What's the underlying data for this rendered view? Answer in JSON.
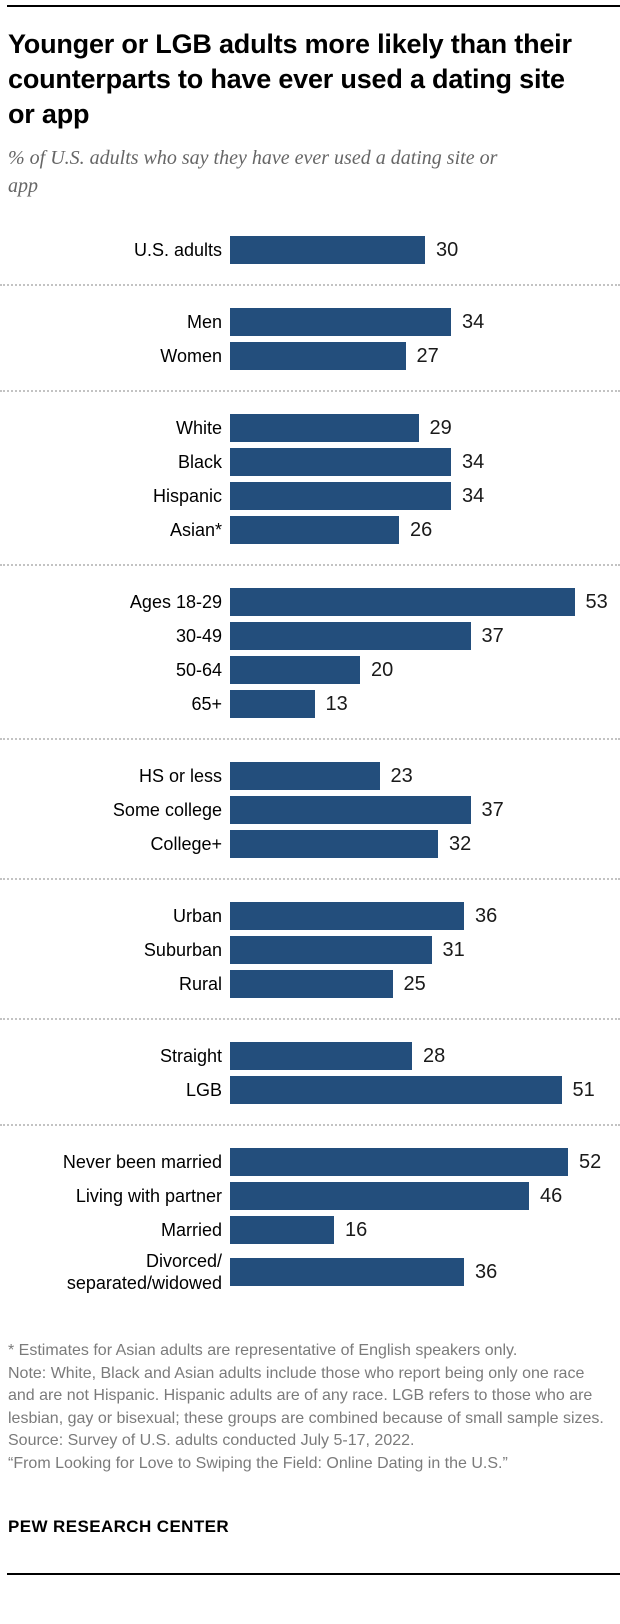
{
  "header": {
    "title": "Younger or LGB adults more likely than their counterparts to have ever used a dating site or app",
    "subtitle": "% of U.S. adults who say they have ever used a dating site or app"
  },
  "chart_data": {
    "type": "bar",
    "orientation": "horizontal",
    "unit": "%",
    "xlim": [
      0,
      60
    ],
    "grid": false,
    "legend": "none",
    "bar_color": "#234e7c",
    "title": "Younger or LGB adults more likely than their counterparts to have ever used a dating site or app",
    "subtitle": "% of U.S. adults who say they have ever used a dating site or app",
    "groups": [
      {
        "rows": [
          {
            "label": "U.S. adults",
            "value": 30
          }
        ]
      },
      {
        "rows": [
          {
            "label": "Men",
            "value": 34
          },
          {
            "label": "Women",
            "value": 27
          }
        ]
      },
      {
        "rows": [
          {
            "label": "White",
            "value": 29
          },
          {
            "label": "Black",
            "value": 34
          },
          {
            "label": "Hispanic",
            "value": 34
          },
          {
            "label": "Asian*",
            "value": 26
          }
        ]
      },
      {
        "rows": [
          {
            "label": "Ages 18-29",
            "value": 53
          },
          {
            "label": "30-49",
            "value": 37
          },
          {
            "label": "50-64",
            "value": 20
          },
          {
            "label": "65+",
            "value": 13
          }
        ]
      },
      {
        "rows": [
          {
            "label": "HS or less",
            "value": 23
          },
          {
            "label": "Some college",
            "value": 37
          },
          {
            "label": "College+",
            "value": 32
          }
        ]
      },
      {
        "rows": [
          {
            "label": "Urban",
            "value": 36
          },
          {
            "label": "Suburban",
            "value": 31
          },
          {
            "label": "Rural",
            "value": 25
          }
        ]
      },
      {
        "rows": [
          {
            "label": "Straight",
            "value": 28
          },
          {
            "label": "LGB",
            "value": 51
          }
        ]
      },
      {
        "rows": [
          {
            "label": "Never been married",
            "value": 52
          },
          {
            "label": "Living with partner",
            "value": 46
          },
          {
            "label": "Married",
            "value": 16
          },
          {
            "label": "Divorced/\nseparated/widowed",
            "value": 36
          }
        ]
      }
    ]
  },
  "footnotes": [
    "* Estimates for Asian adults are representative of English speakers only.",
    "Note: White, Black and Asian adults include those who report being only one race and are not Hispanic. Hispanic adults are of any race. LGB refers to those who are lesbian, gay or bisexual; these groups are combined because of small sample sizes.",
    "Source: Survey of U.S. adults conducted July 5-17, 2022.",
    "“From Looking for Love to Swiping the Field: Online Dating in the U.S.”"
  ],
  "footer": {
    "brand": "PEW RESEARCH CENTER"
  }
}
